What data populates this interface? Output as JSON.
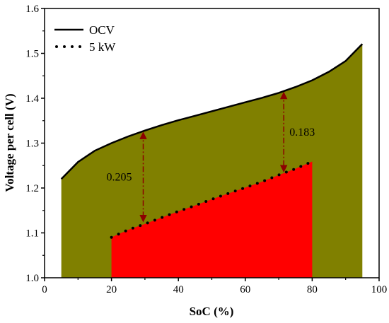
{
  "chart_data": {
    "type": "area",
    "title": "",
    "xlabel": "SoC (%)",
    "ylabel": "Voltage per cell (V)",
    "xlim": [
      0,
      100
    ],
    "ylim": [
      1.0,
      1.6
    ],
    "xticks": [
      0,
      20,
      40,
      60,
      80,
      100
    ],
    "xtick_labels": [
      "0",
      "20",
      "40",
      "60",
      "80",
      "100"
    ],
    "yticks": [
      1.0,
      1.1,
      1.2,
      1.3,
      1.4,
      1.5,
      1.6
    ],
    "ytick_labels": [
      "1.0",
      "1.1",
      "1.2",
      "1.3",
      "1.4",
      "1.5",
      "1.6"
    ],
    "grid": false,
    "legend_position": "top-left",
    "series": [
      {
        "name": "OCV",
        "style": "solid",
        "line_color": "#000000",
        "fill_color": "#808000",
        "x": [
          5,
          10,
          15,
          20,
          25,
          30,
          35,
          40,
          45,
          50,
          55,
          60,
          65,
          70,
          75,
          80,
          85,
          90,
          95
        ],
        "y": [
          1.22,
          1.258,
          1.283,
          1.3,
          1.315,
          1.328,
          1.34,
          1.351,
          1.361,
          1.371,
          1.381,
          1.391,
          1.401,
          1.412,
          1.425,
          1.44,
          1.459,
          1.483,
          1.521
        ]
      },
      {
        "name": "5 kW",
        "style": "dotted",
        "line_color": "#000000",
        "fill_color": "#ff0000",
        "x": [
          20,
          25,
          30,
          35,
          40,
          45,
          50,
          55,
          60,
          65,
          70,
          75,
          80
        ],
        "y": [
          1.09,
          1.107,
          1.12,
          1.134,
          1.148,
          1.161,
          1.175,
          1.188,
          1.201,
          1.214,
          1.229,
          1.243,
          1.259
        ]
      }
    ],
    "annotations": [
      {
        "text": "0.205",
        "x": 29.5,
        "y_top": 1.327,
        "y_bottom": 1.122,
        "color": "#8b0000",
        "label_side": "left"
      },
      {
        "text": "0.183",
        "x": 71.5,
        "y_top": 1.416,
        "y_bottom": 1.233,
        "color": "#8b0000",
        "label_side": "right"
      }
    ]
  }
}
